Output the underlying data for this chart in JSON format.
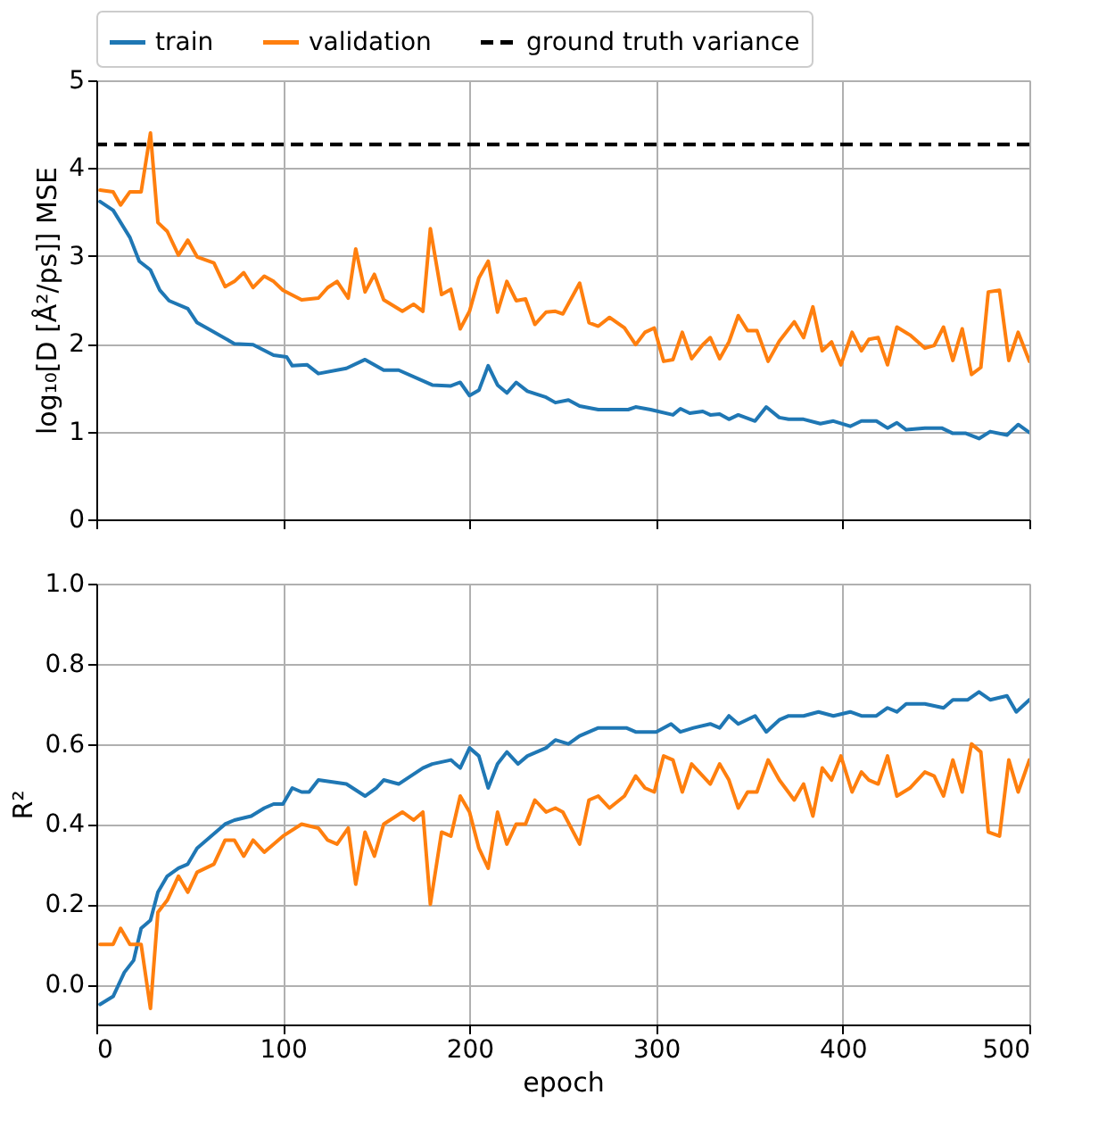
{
  "chart_data": [
    {
      "type": "line",
      "ylabel": "log₁₀[D [Å²/ps]] MSE",
      "xlim": [
        0,
        500
      ],
      "xticks": [
        0,
        100,
        200,
        300,
        400,
        500
      ],
      "ylim": [
        0,
        5
      ],
      "yticks": [
        0,
        1,
        2,
        3,
        4,
        5
      ],
      "grid": true,
      "legend": "top",
      "tick_labels": "y",
      "line_style": "solid",
      "series": [
        {
          "name": "train",
          "color": "#1f77b4",
          "x": [
            2,
            9,
            18,
            23,
            29,
            34,
            39,
            49,
            54,
            60,
            74,
            84,
            95,
            102,
            105,
            113,
            119,
            134,
            144,
            154,
            162,
            180,
            190,
            195,
            200,
            205,
            210,
            215,
            220,
            225,
            231,
            241,
            246,
            253,
            259,
            269,
            285,
            289,
            297,
            309,
            313,
            318,
            325,
            329,
            334,
            339,
            344,
            353,
            359,
            366,
            371,
            379,
            388,
            395,
            404,
            410,
            418,
            424,
            429,
            434,
            444,
            453,
            459,
            466,
            473,
            479,
            488,
            494,
            500
          ],
          "values": [
            3.62,
            3.52,
            3.21,
            2.94,
            2.84,
            2.61,
            2.49,
            2.4,
            2.24,
            2.17,
            2.0,
            1.99,
            1.87,
            1.85,
            1.75,
            1.76,
            1.66,
            1.72,
            1.82,
            1.7,
            1.7,
            1.53,
            1.52,
            1.56,
            1.41,
            1.47,
            1.75,
            1.53,
            1.44,
            1.56,
            1.46,
            1.39,
            1.33,
            1.36,
            1.29,
            1.25,
            1.25,
            1.28,
            1.25,
            1.19,
            1.26,
            1.21,
            1.23,
            1.19,
            1.2,
            1.14,
            1.19,
            1.12,
            1.28,
            1.16,
            1.14,
            1.14,
            1.09,
            1.12,
            1.06,
            1.12,
            1.12,
            1.04,
            1.1,
            1.02,
            1.04,
            1.04,
            0.98,
            0.98,
            0.92,
            1.0,
            0.96,
            1.08,
            0.99
          ]
        },
        {
          "name": "validation",
          "color": "#ff7f0e",
          "x": [
            2,
            9,
            13,
            18,
            24,
            29,
            33,
            38,
            44,
            49,
            54,
            63,
            69,
            74,
            79,
            84,
            90,
            95,
            100,
            110,
            119,
            124,
            129,
            135,
            139,
            144,
            149,
            154,
            164,
            170,
            175,
            179,
            185,
            190,
            195,
            200,
            205,
            210,
            215,
            220,
            225,
            230,
            235,
            241,
            246,
            250,
            259,
            264,
            269,
            275,
            283,
            289,
            294,
            299,
            304,
            309,
            314,
            319,
            325,
            329,
            334,
            339,
            344,
            349,
            354,
            360,
            366,
            374,
            379,
            384,
            389,
            394,
            399,
            405,
            410,
            414,
            419,
            424,
            429,
            436,
            444,
            449,
            454,
            459,
            464,
            469,
            474,
            478,
            484,
            489,
            494,
            500
          ],
          "values": [
            3.75,
            3.73,
            3.58,
            3.73,
            3.73,
            4.4,
            3.38,
            3.28,
            3.01,
            3.18,
            2.99,
            2.92,
            2.65,
            2.71,
            2.81,
            2.64,
            2.77,
            2.71,
            2.61,
            2.5,
            2.52,
            2.64,
            2.71,
            2.52,
            3.08,
            2.59,
            2.79,
            2.5,
            2.37,
            2.45,
            2.37,
            3.31,
            2.56,
            2.62,
            2.17,
            2.37,
            2.75,
            2.94,
            2.36,
            2.71,
            2.49,
            2.51,
            2.22,
            2.36,
            2.37,
            2.34,
            2.69,
            2.24,
            2.2,
            2.3,
            2.18,
            1.99,
            2.13,
            2.18,
            1.8,
            1.82,
            2.13,
            1.83,
            1.99,
            2.07,
            1.83,
            2.02,
            2.32,
            2.15,
            2.15,
            1.8,
            2.03,
            2.25,
            2.07,
            2.42,
            1.92,
            2.02,
            1.76,
            2.13,
            1.92,
            2.05,
            2.07,
            1.76,
            2.19,
            2.1,
            1.95,
            1.98,
            2.19,
            1.81,
            2.17,
            1.65,
            1.73,
            2.59,
            2.61,
            1.81,
            2.13,
            1.8
          ]
        }
      ],
      "ref_lines": [
        {
          "axis": "y",
          "value": 4.27,
          "label": "ground truth variance",
          "color": "#000000",
          "line_style": "dashed"
        }
      ]
    },
    {
      "type": "line",
      "xlabel": "epoch",
      "ylabel": "R²",
      "xlim": [
        0,
        500
      ],
      "xticks": [
        0,
        100,
        200,
        300,
        400,
        500
      ],
      "ylim": [
        -0.1,
        1.0
      ],
      "yticks": [
        {
          "value": 0,
          "label": "0.0"
        },
        0.2,
        0.4,
        0.6,
        0.8,
        {
          "value": 1,
          "label": "1.0"
        }
      ],
      "grid": true,
      "line_style": "solid",
      "series": [
        {
          "color": "#1f77b4",
          "x": [
            2,
            9,
            15,
            20,
            24,
            29,
            33,
            38,
            44,
            49,
            54,
            59,
            69,
            74,
            83,
            90,
            95,
            100,
            105,
            110,
            114,
            119,
            134,
            144,
            150,
            154,
            162,
            175,
            180,
            190,
            195,
            200,
            205,
            210,
            215,
            220,
            226,
            231,
            241,
            246,
            253,
            259,
            269,
            284,
            289,
            294,
            300,
            308,
            313,
            320,
            329,
            334,
            339,
            344,
            353,
            359,
            366,
            371,
            379,
            387,
            395,
            404,
            410,
            418,
            424,
            429,
            434,
            444,
            454,
            459,
            467,
            473,
            479,
            488,
            493,
            500
          ],
          "values": [
            -0.05,
            -0.03,
            0.03,
            0.06,
            0.14,
            0.16,
            0.23,
            0.27,
            0.29,
            0.3,
            0.34,
            0.36,
            0.4,
            0.41,
            0.42,
            0.44,
            0.45,
            0.45,
            0.49,
            0.48,
            0.48,
            0.51,
            0.5,
            0.47,
            0.49,
            0.51,
            0.5,
            0.54,
            0.55,
            0.56,
            0.54,
            0.59,
            0.57,
            0.49,
            0.55,
            0.58,
            0.55,
            0.57,
            0.59,
            0.61,
            0.6,
            0.62,
            0.64,
            0.64,
            0.63,
            0.63,
            0.63,
            0.65,
            0.63,
            0.64,
            0.65,
            0.64,
            0.67,
            0.65,
            0.67,
            0.63,
            0.66,
            0.67,
            0.67,
            0.68,
            0.67,
            0.68,
            0.67,
            0.67,
            0.69,
            0.68,
            0.7,
            0.7,
            0.69,
            0.71,
            0.71,
            0.73,
            0.71,
            0.72,
            0.68,
            0.71
          ]
        },
        {
          "color": "#ff7f0e",
          "x": [
            2,
            9,
            13,
            18,
            24,
            29,
            33,
            38,
            44,
            49,
            54,
            63,
            69,
            74,
            79,
            84,
            90,
            95,
            100,
            110,
            119,
            124,
            129,
            135,
            139,
            144,
            149,
            154,
            164,
            170,
            175,
            179,
            185,
            190,
            195,
            200,
            205,
            210,
            215,
            220,
            225,
            230,
            235,
            241,
            246,
            250,
            259,
            264,
            269,
            275,
            283,
            289,
            294,
            299,
            304,
            309,
            314,
            319,
            325,
            329,
            334,
            339,
            344,
            349,
            354,
            360,
            366,
            374,
            379,
            384,
            389,
            394,
            399,
            405,
            410,
            414,
            419,
            424,
            429,
            436,
            444,
            449,
            454,
            459,
            464,
            469,
            474,
            478,
            484,
            489,
            494,
            500
          ],
          "values": [
            0.1,
            0.1,
            0.14,
            0.1,
            0.1,
            -0.06,
            0.18,
            0.21,
            0.27,
            0.23,
            0.28,
            0.3,
            0.36,
            0.36,
            0.32,
            0.36,
            0.33,
            0.35,
            0.37,
            0.4,
            0.39,
            0.36,
            0.35,
            0.39,
            0.25,
            0.38,
            0.32,
            0.4,
            0.43,
            0.41,
            0.43,
            0.2,
            0.38,
            0.37,
            0.47,
            0.43,
            0.34,
            0.29,
            0.43,
            0.35,
            0.4,
            0.4,
            0.46,
            0.43,
            0.44,
            0.43,
            0.35,
            0.46,
            0.47,
            0.44,
            0.47,
            0.52,
            0.49,
            0.48,
            0.57,
            0.56,
            0.48,
            0.55,
            0.52,
            0.5,
            0.55,
            0.51,
            0.44,
            0.48,
            0.48,
            0.56,
            0.51,
            0.46,
            0.5,
            0.42,
            0.54,
            0.51,
            0.57,
            0.48,
            0.53,
            0.51,
            0.5,
            0.57,
            0.47,
            0.49,
            0.53,
            0.52,
            0.47,
            0.56,
            0.48,
            0.6,
            0.58,
            0.38,
            0.37,
            0.56,
            0.48,
            0.56
          ]
        }
      ]
    }
  ]
}
